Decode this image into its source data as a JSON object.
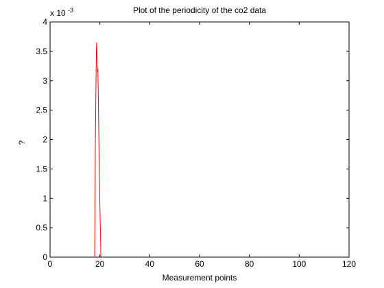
{
  "chart_data": {
    "type": "line",
    "title": "Plot of the periodicity of the co2 data",
    "xlabel": "Measurement points",
    "ylabel": "?",
    "y_exponent_base": "x 10",
    "y_exponent_power": "-3",
    "xlim": [
      0,
      120
    ],
    "ylim": [
      0,
      4
    ],
    "x_ticks": [
      0,
      20,
      40,
      60,
      80,
      100,
      120
    ],
    "x_tick_labels": [
      "0",
      "20",
      "40",
      "60",
      "80",
      "100",
      "120"
    ],
    "y_ticks": [
      0,
      0.5,
      1,
      1.5,
      2,
      2.5,
      3,
      3.5,
      4
    ],
    "y_tick_labels": [
      "0",
      "0.5",
      "1",
      "1.5",
      "2",
      "2.5",
      "3",
      "3.5",
      "4"
    ],
    "grid": false,
    "series": [
      {
        "color": "#ff0000",
        "x": [
          17.9,
          18.0,
          18.15,
          18.3,
          18.45,
          18.6,
          18.75,
          18.9,
          19.05,
          19.2,
          19.35,
          19.5,
          19.65,
          19.8,
          19.95,
          20.1,
          20.25,
          20.4
        ],
        "y": [
          0,
          0.6,
          1.8,
          2.4,
          3.0,
          3.55,
          3.65,
          3.3,
          3.15,
          3.2,
          2.8,
          2.3,
          1.8,
          1.35,
          1.0,
          0.65,
          0.4,
          0
        ]
      }
    ]
  }
}
